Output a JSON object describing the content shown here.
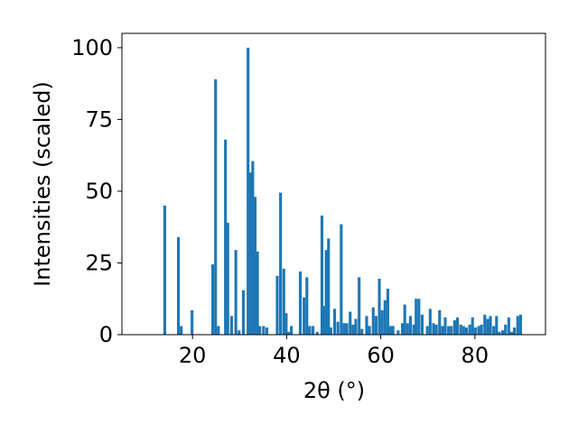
{
  "chart_data": {
    "type": "bar",
    "title": "",
    "xlabel": "2θ (°)",
    "ylabel": "Intensities (scaled)",
    "xlim": [
      5,
      95
    ],
    "ylim": [
      0,
      105
    ],
    "x_ticks": [
      20,
      40,
      60,
      80
    ],
    "y_ticks": [
      0,
      25,
      50,
      75,
      100
    ],
    "x_tick_labels": [
      "20",
      "40",
      "60",
      "80"
    ],
    "y_tick_labels": [
      "0",
      "25",
      "50",
      "75",
      "100"
    ],
    "grid": false,
    "legend": "none",
    "bar_width": 0.6,
    "bar_color": "#1f77b4",
    "series": [
      {
        "x": [
          14.1,
          17.0,
          17.6,
          19.9,
          24.3,
          24.9,
          25.5,
          27.0,
          27.5,
          28.3,
          29.2,
          29.9,
          30.8,
          31.8,
          32.3,
          32.8,
          33.3,
          33.8,
          34.3,
          35.1,
          35.8,
          38.0,
          38.7,
          39.4,
          39.9,
          40.4,
          41.0,
          42.9,
          43.7,
          44.3,
          44.9,
          45.6,
          46.5,
          47.5,
          47.9,
          48.4,
          48.9,
          49.4,
          50.2,
          50.9,
          51.6,
          52.2,
          52.8,
          53.5,
          54.1,
          54.7,
          55.4,
          56.0,
          57.0,
          57.6,
          58.4,
          59.0,
          59.7,
          60.3,
          60.9,
          61.5,
          62.1,
          62.6,
          63.7,
          64.6,
          65.1,
          65.7,
          66.3,
          67.0,
          67.5,
          68.1,
          68.8,
          69.9,
          70.5,
          71.2,
          71.8,
          72.5,
          73.1,
          73.7,
          74.4,
          75.0,
          75.7,
          76.3,
          77.0,
          77.6,
          78.2,
          78.9,
          79.5,
          80.1,
          80.8,
          81.4,
          82.1,
          82.7,
          83.3,
          84.0,
          84.6,
          85.2,
          85.9,
          86.5,
          87.2,
          87.8,
          88.4,
          89.1,
          89.7
        ],
        "values": [
          45,
          34,
          3,
          8.5,
          24.5,
          89,
          3,
          68,
          39,
          6.5,
          29.5,
          1.5,
          15.5,
          100,
          56.5,
          60.5,
          48,
          29,
          3,
          3,
          2.5,
          20.5,
          49.5,
          23,
          7.5,
          1,
          3,
          22,
          13,
          20,
          3,
          3,
          1,
          41.5,
          10,
          29.5,
          33.5,
          2.5,
          9,
          4.5,
          38.5,
          4,
          4,
          8,
          3.5,
          5.5,
          20,
          2,
          6.5,
          3,
          9.5,
          6.5,
          19.5,
          8.5,
          12,
          16,
          3,
          3,
          1.5,
          4,
          10.5,
          4,
          6.5,
          3.5,
          12.5,
          12.5,
          7,
          3,
          9,
          4,
          3.5,
          8.5,
          3,
          6,
          3,
          3,
          5,
          6,
          3.5,
          3,
          2.5,
          3.5,
          6,
          2.5,
          3,
          3.5,
          7,
          5.5,
          6.5,
          3,
          6.5,
          1,
          1.5,
          3.5,
          6,
          1,
          2.5,
          6.5,
          7
        ]
      }
    ]
  }
}
